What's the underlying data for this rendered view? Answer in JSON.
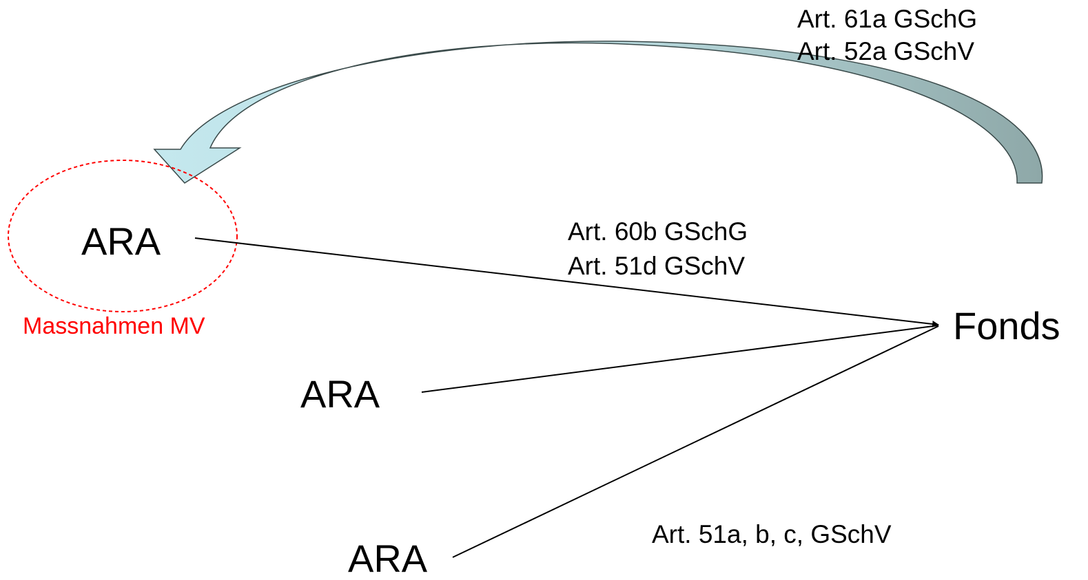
{
  "nodes": {
    "ara_top": "ARA",
    "ara_middle": "ARA",
    "ara_bottom": "ARA",
    "fonds": "Fonds"
  },
  "annotations": {
    "measures": "Massnahmen MV",
    "flow_in_line1": "Art. 60b GSchG",
    "flow_in_line2": "Art. 51d GSchV",
    "return_line1": "Art. 61a GSchG",
    "return_line2": "Art. 52a GSchV",
    "fees": "Art. 51a, b, c, GSchV"
  },
  "colors": {
    "text": "#000000",
    "highlight": "#ff0000",
    "arrow_light": "#bfe3e8",
    "arrow_dark": "#8fa9aa"
  }
}
